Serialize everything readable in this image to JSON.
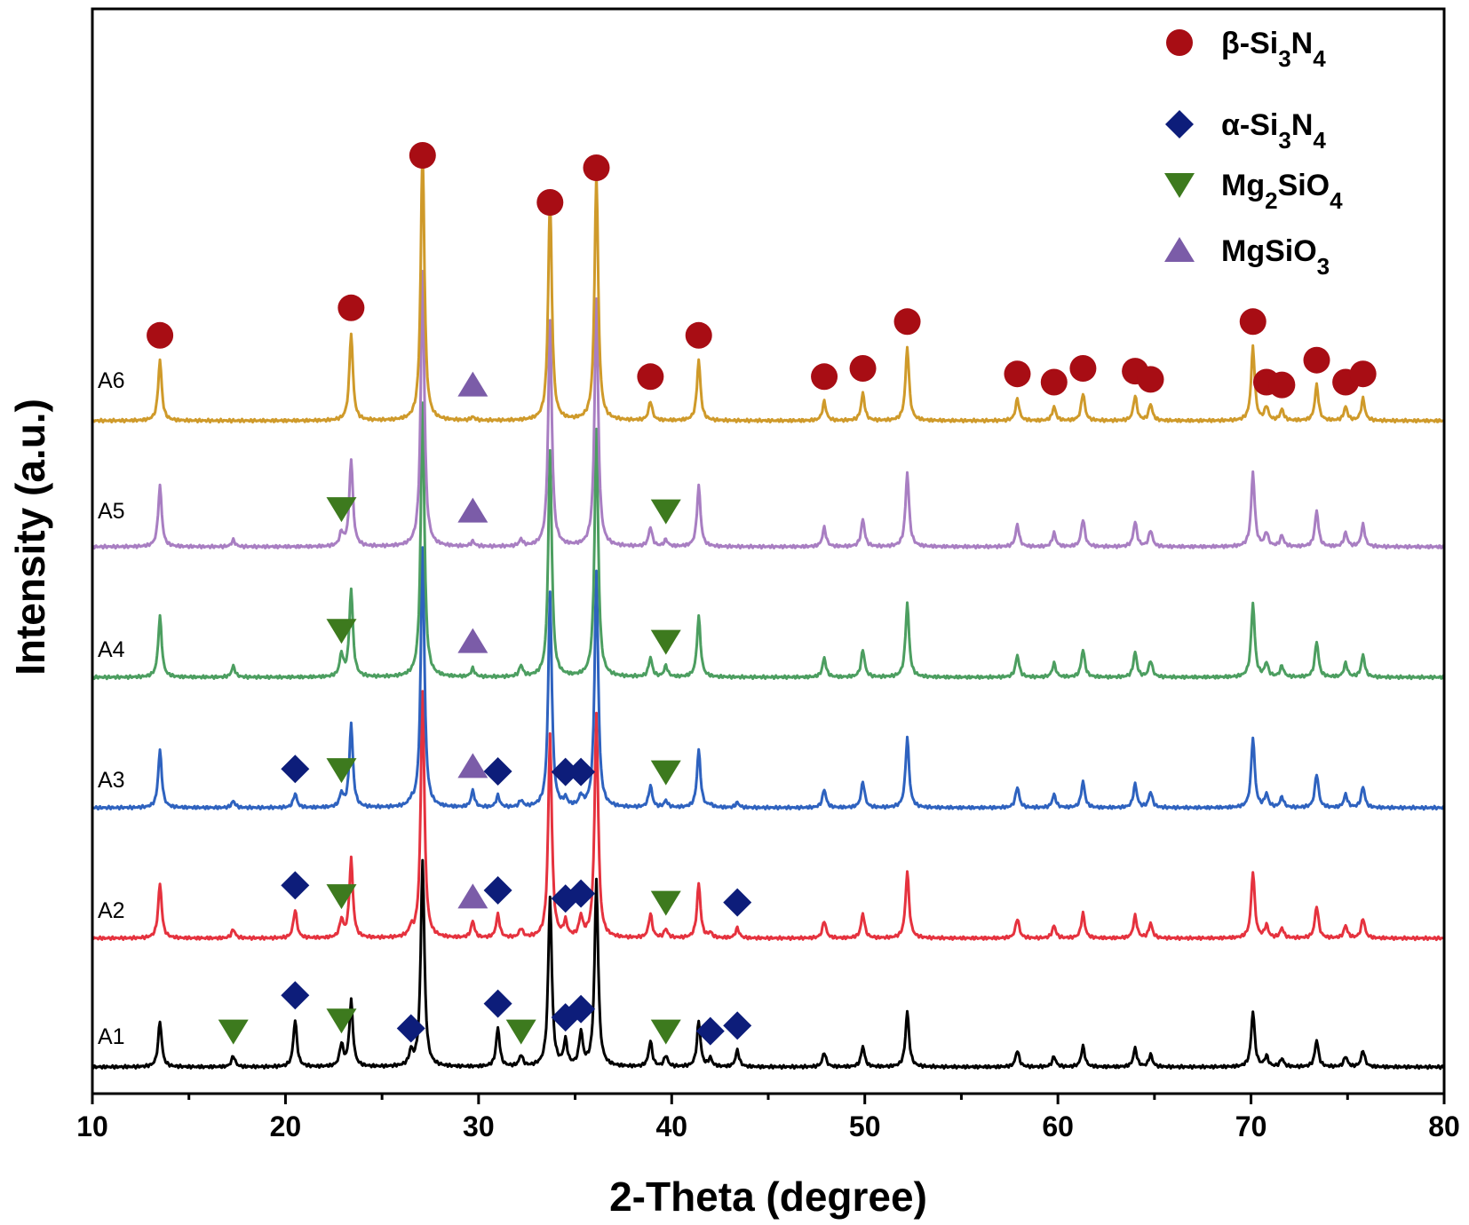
{
  "chart_data": {
    "type": "line",
    "xlabel": "2-Theta (degree)",
    "ylabel": "Intensity (a.u.)",
    "xlim": [
      10,
      80
    ],
    "xticks": [
      10,
      20,
      30,
      40,
      50,
      60,
      70,
      80
    ],
    "y_ticks_shown": false,
    "grid": false,
    "legend_position": "top-right",
    "phases": [
      {
        "key": "beta",
        "label": "β-Si3N4",
        "marker": "circle",
        "color": "#a80d14"
      },
      {
        "key": "alpha",
        "label": "α-Si3N4",
        "marker": "diamond",
        "color": "#0d1d7a"
      },
      {
        "key": "mg2sio4",
        "label": "Mg2SiO4",
        "marker": "triangle-down",
        "color": "#3d7a1e"
      },
      {
        "key": "mgsio3",
        "label": "MgSiO3",
        "marker": "triangle-up",
        "color": "#7b5ca8"
      }
    ],
    "peaks": {
      "beta": [
        {
          "x": 13.5,
          "h": 0.22
        },
        {
          "x": 23.4,
          "h": 0.32
        },
        {
          "x": 27.1,
          "h": 1.0
        },
        {
          "x": 33.7,
          "h": 0.82
        },
        {
          "x": 36.1,
          "h": 0.9
        },
        {
          "x": 38.9,
          "h": 0.07
        },
        {
          "x": 41.4,
          "h": 0.22
        },
        {
          "x": 47.9,
          "h": 0.07
        },
        {
          "x": 49.9,
          "h": 0.1
        },
        {
          "x": 52.2,
          "h": 0.27
        },
        {
          "x": 57.9,
          "h": 0.08
        },
        {
          "x": 59.8,
          "h": 0.05
        },
        {
          "x": 61.3,
          "h": 0.1
        },
        {
          "x": 64.0,
          "h": 0.09
        },
        {
          "x": 64.8,
          "h": 0.06
        },
        {
          "x": 70.1,
          "h": 0.27
        },
        {
          "x": 70.8,
          "h": 0.05
        },
        {
          "x": 71.6,
          "h": 0.04
        },
        {
          "x": 73.4,
          "h": 0.13
        },
        {
          "x": 74.9,
          "h": 0.05
        },
        {
          "x": 75.8,
          "h": 0.08
        }
      ],
      "alpha": [
        {
          "x": 20.5,
          "h": 0.17
        },
        {
          "x": 26.5,
          "h": 0.05
        },
        {
          "x": 31.0,
          "h": 0.14
        },
        {
          "x": 34.5,
          "h": 0.09
        },
        {
          "x": 35.3,
          "h": 0.12
        },
        {
          "x": 38.9,
          "h": 0.04
        },
        {
          "x": 42.0,
          "h": 0.03
        },
        {
          "x": 43.4,
          "h": 0.06
        }
      ],
      "mg2sio4": [
        {
          "x": 17.3,
          "h": 0.04
        },
        {
          "x": 22.9,
          "h": 0.08
        },
        {
          "x": 32.2,
          "h": 0.04
        },
        {
          "x": 39.7,
          "h": 0.04
        }
      ],
      "mgsio3": [
        {
          "x": 29.7,
          "h": 0.06
        }
      ]
    },
    "series": [
      {
        "name": "A1",
        "color": "#000000",
        "scale": {
          "beta": 0.75,
          "alpha": 1.0,
          "mg2sio4": 1.0,
          "mgsio3": 0.0
        },
        "markers": {
          "alpha": [
            20.5,
            26.5,
            31.0,
            34.5,
            35.3,
            42.0,
            43.4
          ],
          "mg2sio4": [
            17.3,
            22.9,
            32.2,
            39.7
          ]
        }
      },
      {
        "name": "A2",
        "color": "#e5323e",
        "scale": {
          "beta": 0.9,
          "alpha": 0.6,
          "mg2sio4": 0.8,
          "mgsio3": 1.0
        },
        "markers": {
          "alpha": [
            20.5,
            31.0,
            34.5,
            35.3,
            43.4
          ],
          "mg2sio4": [
            22.9,
            39.7
          ],
          "mgsio3": [
            29.7
          ]
        }
      },
      {
        "name": "A3",
        "color": "#2e62bf",
        "scale": {
          "beta": 0.95,
          "alpha": 0.3,
          "mg2sio4": 0.6,
          "mgsio3": 1.0
        },
        "markers": {
          "alpha": [
            20.5,
            31.0,
            34.5,
            35.3
          ],
          "mg2sio4": [
            22.9,
            39.7
          ],
          "mgsio3": [
            29.7
          ]
        }
      },
      {
        "name": "A4",
        "color": "#4c9e60",
        "scale": {
          "beta": 1.0,
          "alpha": 0.0,
          "mg2sio4": 1.0,
          "mgsio3": 0.5
        },
        "markers": {
          "mg2sio4": [
            22.9,
            39.7
          ],
          "mgsio3": [
            29.7
          ]
        }
      },
      {
        "name": "A5",
        "color": "#a87ec2",
        "scale": {
          "beta": 1.0,
          "alpha": 0.0,
          "mg2sio4": 0.6,
          "mgsio3": 0.3
        },
        "markers": {
          "mg2sio4": [
            22.9,
            39.7
          ],
          "mgsio3": [
            29.7
          ]
        }
      },
      {
        "name": "A6",
        "color": "#cf9a2a",
        "scale": {
          "beta": 1.0,
          "alpha": 0.0,
          "mg2sio4": 0.0,
          "mgsio3": 0.2
        },
        "markers": {
          "beta": [
            13.5,
            23.4,
            27.1,
            33.7,
            36.1,
            38.9,
            41.4,
            47.9,
            49.9,
            52.2,
            57.9,
            59.8,
            61.3,
            64.0,
            64.8,
            70.1,
            70.8,
            71.6,
            73.4,
            74.9,
            75.8
          ],
          "mgsio3": [
            29.7
          ]
        }
      }
    ]
  }
}
